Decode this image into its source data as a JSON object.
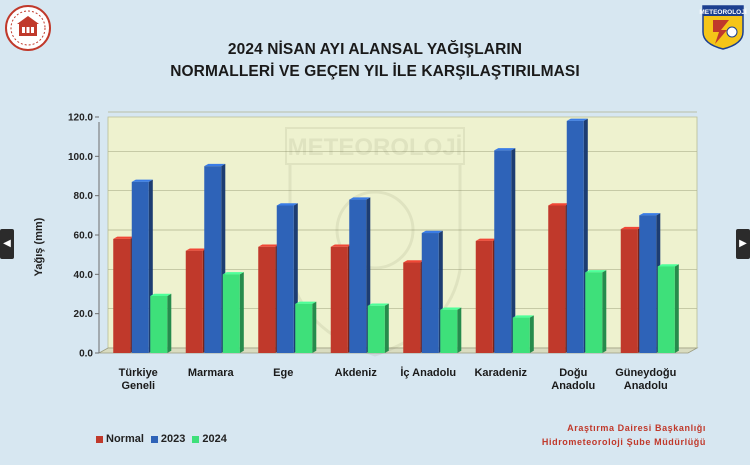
{
  "title_line1": "2024 NİSAN AYI ALANSAL YAĞIŞLARIN",
  "title_line2": "NORMALLERİ VE GEÇEN YIL İLE KARŞILAŞTIRILMASI",
  "logo_right_text": "METEOROLOJİ",
  "watermark_text": "METEOROLOJİ",
  "credit_line1": "Araştırma Dairesi Başkanlığı",
  "credit_line2": "Hidrometeoroloji Şube Müdürlüğü",
  "nav": {
    "prev_icon": "chevron-left-icon",
    "next_icon": "chevron-right-icon",
    "prev_glyph": "◀",
    "next_glyph": "▶"
  },
  "colors": {
    "Normal": "#c0392b",
    "2023": "#2e63b8",
    "2024": "#3ee07a",
    "plot_bg": "#eef2cf",
    "floor": "#d9dcc0"
  },
  "chart_data": {
    "type": "bar",
    "title": "2024 NİSAN AYI ALANSAL YAĞIŞLARIN NORMALLERİ VE GEÇEN YIL İLE KARŞILAŞTIRILMASI",
    "xlabel": "",
    "ylabel": "Yağış (mm)",
    "ylim": [
      0,
      120
    ],
    "yticks": [
      "0.0",
      "20.0",
      "40.0",
      "60.0",
      "80.0",
      "100.0",
      "120.0"
    ],
    "grid": true,
    "legend_position": "bottom-left",
    "categories": [
      [
        "Türkiye",
        "Geneli"
      ],
      [
        "Marmara"
      ],
      [
        "Ege"
      ],
      [
        "Akdeniz"
      ],
      [
        "İç Anadolu"
      ],
      [
        "Karadeniz"
      ],
      [
        "Doğu",
        "Anadolu"
      ],
      [
        "Güneydoğu",
        "Anadolu"
      ]
    ],
    "series": [
      {
        "name": "Normal",
        "values": [
          58,
          52,
          54,
          54,
          46,
          57,
          75,
          63
        ]
      },
      {
        "name": "2023",
        "values": [
          87,
          95,
          75,
          78,
          61,
          103,
          118,
          70
        ]
      },
      {
        "name": "2024",
        "values": [
          29,
          40,
          25,
          24,
          22,
          18,
          41,
          44
        ]
      }
    ]
  }
}
